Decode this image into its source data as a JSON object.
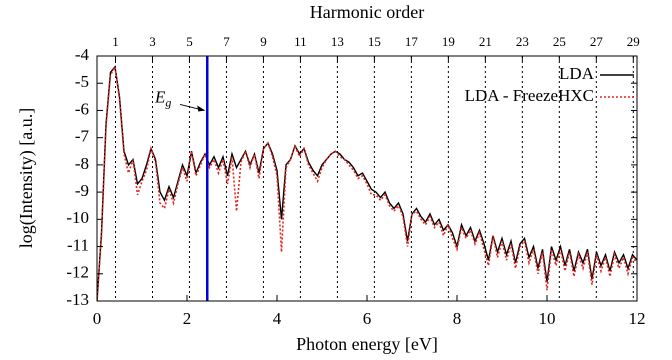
{
  "chart_data": {
    "type": "line",
    "x_label": "Photon energy [eV]",
    "y_label": "log(Intensity) [a.u.]",
    "x2_label": "Harmonic order",
    "xlim": [
      0,
      12
    ],
    "xticks": [
      0,
      2,
      4,
      6,
      8,
      10,
      12
    ],
    "ylim": [
      -13,
      -4
    ],
    "yticks": [
      -4,
      -5,
      -6,
      -7,
      -8,
      -9,
      -10,
      -11,
      -12,
      -13
    ],
    "x2lim": [
      0,
      29.2
    ],
    "x2ticks": [
      1,
      3,
      5,
      7,
      9,
      11,
      13,
      15,
      17,
      19,
      21,
      23,
      25,
      27,
      29
    ],
    "x2grid": true,
    "legend": "upper right",
    "vline": {
      "x": 2.45,
      "color": "#0000dd"
    },
    "annotation": {
      "label": [
        "E",
        "g"
      ],
      "x": 2.45,
      "y": -6
    },
    "x": [
      0,
      0.1,
      0.2,
      0.3,
      0.4,
      0.5,
      0.6,
      0.7,
      0.8,
      0.9,
      1,
      1.1,
      1.2,
      1.3,
      1.4,
      1.5,
      1.6,
      1.7,
      1.8,
      1.9,
      2,
      2.1,
      2.2,
      2.3,
      2.4,
      2.5,
      2.6,
      2.7,
      2.8,
      2.9,
      3,
      3.1,
      3.2,
      3.3,
      3.4,
      3.5,
      3.6,
      3.7,
      3.8,
      3.9,
      4,
      4.1,
      4.2,
      4.3,
      4.4,
      4.5,
      4.6,
      4.7,
      4.8,
      4.9,
      5,
      5.1,
      5.2,
      5.3,
      5.4,
      5.5,
      5.6,
      5.7,
      5.8,
      5.9,
      6,
      6.1,
      6.2,
      6.3,
      6.4,
      6.5,
      6.6,
      6.7,
      6.8,
      6.9,
      7,
      7.1,
      7.2,
      7.3,
      7.4,
      7.5,
      7.6,
      7.7,
      7.8,
      7.9,
      8,
      8.1,
      8.2,
      8.3,
      8.4,
      8.5,
      8.6,
      8.7,
      8.8,
      8.9,
      9,
      9.1,
      9.2,
      9.3,
      9.4,
      9.5,
      9.6,
      9.7,
      9.8,
      9.9,
      10,
      10.1,
      10.2,
      10.3,
      10.4,
      10.5,
      10.6,
      10.7,
      10.8,
      10.9,
      11,
      11.1,
      11.2,
      11.3,
      11.4,
      11.5,
      11.6,
      11.7,
      11.8,
      11.9,
      12
    ],
    "series": [
      {
        "name": "LDA",
        "color": "#000000",
        "dash": false,
        "values": [
          -13,
          -10.5,
          -6.5,
          -4.6,
          -4.4,
          -5.5,
          -7.5,
          -8,
          -7.8,
          -8.7,
          -8.5,
          -8,
          -7.4,
          -7.8,
          -9,
          -9.3,
          -8.8,
          -9.2,
          -8.6,
          -8,
          -8.4,
          -7.5,
          -8.3,
          -7.9,
          -7.6,
          -8,
          -7.7,
          -8.1,
          -7.7,
          -8.4,
          -7.6,
          -8.1,
          -7.8,
          -7.5,
          -8,
          -7.6,
          -8.3,
          -7.4,
          -7.2,
          -7.6,
          -8.2,
          -10,
          -8,
          -7.8,
          -7.3,
          -7.6,
          -7.4,
          -7.9,
          -8.2,
          -8.4,
          -8,
          -7.8,
          -7.6,
          -7.5,
          -7.6,
          -7.8,
          -7.9,
          -8.1,
          -8.4,
          -8.3,
          -8.6,
          -8.9,
          -9,
          -9.2,
          -9,
          -9.4,
          -9.6,
          -9.4,
          -9.8,
          -10.8,
          -9.8,
          -9.6,
          -9.9,
          -10.1,
          -9.8,
          -10.2,
          -10,
          -10.4,
          -10.2,
          -10.5,
          -11,
          -10.2,
          -10.6,
          -10.3,
          -10.8,
          -10.4,
          -10.9,
          -11.5,
          -10.6,
          -11.2,
          -10.7,
          -11.3,
          -10.8,
          -11.6,
          -10.9,
          -10.7,
          -11.4,
          -11,
          -11.8,
          -11.1,
          -12.3,
          -11,
          -11.5,
          -11,
          -11.7,
          -11.1,
          -11.9,
          -11.2,
          -11.6,
          -11.1,
          -12.2,
          -11.2,
          -11.7,
          -11.3,
          -11.9,
          -11.2,
          -11.6,
          -11.3,
          -11.8,
          -11.3,
          -11.5
        ]
      },
      {
        "name": "LDA - FreezeHXC",
        "color": "#e8231e",
        "dash": true,
        "values": [
          -13,
          -10.6,
          -6.6,
          -4.7,
          -4.4,
          -5.6,
          -7.6,
          -8.3,
          -7.8,
          -9.1,
          -8.6,
          -8.2,
          -7.4,
          -7.9,
          -9.4,
          -9.6,
          -8.9,
          -9.4,
          -8.7,
          -8.1,
          -8.6,
          -7.5,
          -8.4,
          -8,
          -7.6,
          -8.1,
          -7.8,
          -8.3,
          -7.8,
          -8.7,
          -7.7,
          -9.7,
          -7.9,
          -7.5,
          -8.1,
          -7.6,
          -8.5,
          -7.4,
          -7.2,
          -7.7,
          -8.4,
          -11.2,
          -8.1,
          -7.8,
          -7.3,
          -7.7,
          -7.4,
          -8,
          -8.3,
          -8.6,
          -8.1,
          -7.8,
          -7.6,
          -7.5,
          -7.7,
          -7.8,
          -8,
          -8.2,
          -8.5,
          -8.4,
          -8.7,
          -9.1,
          -9.1,
          -9.3,
          -9.1,
          -9.5,
          -9.7,
          -9.5,
          -9.9,
          -11,
          -9.8,
          -9.7,
          -10,
          -10.2,
          -9.9,
          -10.3,
          -10.1,
          -10.6,
          -10.2,
          -10.7,
          -11.1,
          -10.3,
          -10.7,
          -10.4,
          -10.9,
          -10.5,
          -11.1,
          -11.7,
          -10.6,
          -11.4,
          -10.8,
          -11.5,
          -10.9,
          -11.8,
          -11,
          -10.8,
          -11.6,
          -11.1,
          -12,
          -11.2,
          -12.6,
          -11.1,
          -11.7,
          -11.1,
          -11.9,
          -11.2,
          -12.1,
          -11.3,
          -11.8,
          -11.2,
          -12.4,
          -11.3,
          -11.9,
          -11.4,
          -12.1,
          -11.3,
          -11.8,
          -11.4,
          -12,
          -11.4,
          -11.6
        ]
      }
    ]
  }
}
